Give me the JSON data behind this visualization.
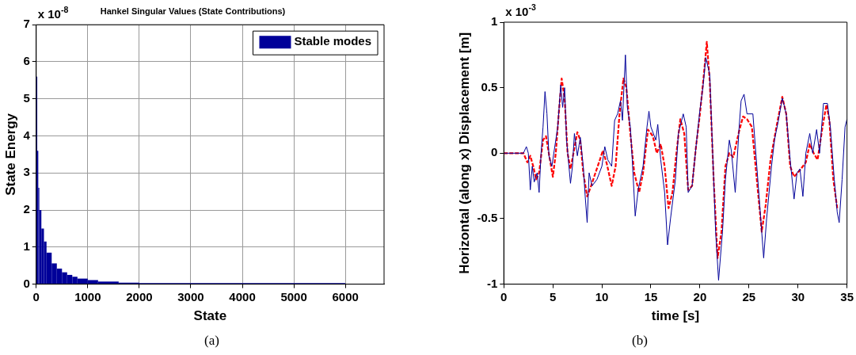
{
  "chart_data": [
    {
      "type": "histogram",
      "title": "Hankel Singular Values (State Contributions)",
      "xlabel": "State",
      "ylabel": "State Energy",
      "bins": [
        0,
        20,
        40,
        60,
        100,
        150,
        200,
        300,
        400,
        500,
        600,
        700,
        800,
        1000,
        1200,
        1600,
        2000,
        6000,
        6750
      ],
      "series": [
        {
          "name": "Stable modes",
          "color": "#000099",
          "values": [
            5.6,
            3.6,
            2.6,
            2.0,
            1.5,
            1.15,
            0.85,
            0.56,
            0.42,
            0.32,
            0.25,
            0.2,
            0.15,
            0.11,
            0.07,
            0.04,
            0.03,
            0.01
          ]
        }
      ],
      "xlim": [
        0,
        6750
      ],
      "xticks": [
        0,
        1000,
        2000,
        3000,
        4000,
        5000,
        6000
      ],
      "ylim": [
        0,
        7
      ],
      "yticks": [
        0,
        1,
        2,
        3,
        4,
        5,
        6,
        7
      ],
      "grid": true,
      "legend": "top right",
      "annotations": [
        "x 10$^{-8}$",
        "(a)"
      ]
    },
    {
      "type": "line",
      "xlabel": "time [s]",
      "ylabel": "Horizontal (along x) Displacement [m]",
      "series": [
        {
          "color": "#000099",
          "line_style": "solid",
          "x": [
            0,
            2.0,
            2.3,
            2.5,
            2.7,
            2.9,
            3.1,
            3.4,
            3.6,
            3.8,
            4.0,
            4.2,
            4.4,
            4.6,
            4.9,
            5.2,
            5.5,
            5.8,
            6.0,
            6.2,
            6.4,
            6.8,
            7.0,
            7.2,
            7.5,
            7.8,
            8.1,
            8.3,
            8.5,
            8.7,
            9.0,
            9.5,
            10.0,
            10.3,
            10.6,
            11.0,
            11.3,
            11.6,
            11.9,
            12.1,
            12.4,
            12.6,
            12.9,
            13.1,
            13.4,
            13.7,
            14.2,
            14.6,
            14.8,
            15.0,
            15.5,
            15.7,
            16.0,
            16.4,
            16.7,
            17.0,
            17.5,
            17.8,
            18.3,
            18.6,
            18.8,
            19.2,
            19.6,
            20.0,
            20.3,
            20.6,
            21.0,
            21.3,
            21.6,
            21.9,
            22.3,
            22.6,
            23.0,
            23.2,
            23.6,
            24.0,
            24.2,
            24.5,
            24.8,
            25.4,
            25.8,
            26.2,
            26.5,
            26.8,
            27.3,
            27.6,
            28.0,
            28.4,
            28.8,
            29.2,
            29.6,
            29.9,
            30.2,
            30.5,
            30.8,
            31.2,
            31.5,
            31.9,
            32.2,
            32.6,
            33.0,
            33.3,
            33.7,
            34.0,
            34.2,
            34.5,
            34.8,
            35.0
          ],
          "values": [
            0,
            0,
            0.05,
            0.0,
            -0.28,
            -0.1,
            -0.22,
            -0.15,
            -0.3,
            0.0,
            0.2,
            0.47,
            0.3,
            -0.02,
            -0.1,
            0.05,
            0.2,
            0.52,
            0.35,
            0.5,
            0.1,
            -0.23,
            -0.1,
            0.15,
            -0.02,
            0.12,
            -0.1,
            -0.33,
            -0.53,
            -0.15,
            -0.25,
            -0.2,
            -0.1,
            0.05,
            -0.05,
            -0.1,
            0.25,
            0.3,
            0.4,
            0.25,
            0.75,
            0.35,
            0.2,
            -0.05,
            -0.48,
            -0.28,
            -0.1,
            0.2,
            0.32,
            0.2,
            0.1,
            0.22,
            -0.05,
            -0.3,
            -0.7,
            -0.5,
            -0.2,
            0.15,
            0.3,
            0.2,
            -0.3,
            -0.25,
            0.05,
            0.33,
            0.5,
            0.73,
            0.6,
            0.0,
            -0.6,
            -0.97,
            -0.6,
            -0.2,
            0.1,
            0.02,
            -0.3,
            0.2,
            0.4,
            0.45,
            0.3,
            0.3,
            -0.1,
            -0.5,
            -0.8,
            -0.5,
            -0.1,
            0.1,
            0.25,
            0.42,
            0.3,
            -0.05,
            -0.35,
            -0.15,
            -0.12,
            -0.33,
            0.0,
            0.15,
            0.0,
            0.18,
            0.0,
            0.38,
            0.38,
            0.2,
            -0.2,
            -0.45,
            -0.53,
            -0.2,
            0.2,
            0.26
          ]
        },
        {
          "color": "#ff0000",
          "line_style": "dashed",
          "x": [
            0,
            2.0,
            2.4,
            2.7,
            3.0,
            3.3,
            3.6,
            4.0,
            4.3,
            4.7,
            5.0,
            5.3,
            5.6,
            5.9,
            6.2,
            6.5,
            6.8,
            7.1,
            7.5,
            7.8,
            8.1,
            8.5,
            8.9,
            9.3,
            9.8,
            10.1,
            10.5,
            11.0,
            11.4,
            11.8,
            12.2,
            12.5,
            12.9,
            13.3,
            13.8,
            14.2,
            14.7,
            15.2,
            15.6,
            16.0,
            16.4,
            16.8,
            17.2,
            17.6,
            18.0,
            18.4,
            18.8,
            19.2,
            19.6,
            20.0,
            20.4,
            20.7,
            21.0,
            21.4,
            21.8,
            22.2,
            22.6,
            23.0,
            23.4,
            24.0,
            24.4,
            24.8,
            25.3,
            25.8,
            26.3,
            26.7,
            27.2,
            27.8,
            28.4,
            28.8,
            29.2,
            29.6,
            30.2,
            30.8,
            31.2,
            31.6,
            32.0,
            32.5,
            32.9,
            33.2,
            33.6,
            34.0
          ],
          "values": [
            0,
            0,
            -0.07,
            -0.02,
            -0.1,
            -0.2,
            -0.15,
            0.1,
            0.13,
            -0.05,
            -0.18,
            0.0,
            0.3,
            0.57,
            0.42,
            0.0,
            -0.12,
            0.0,
            0.16,
            0.1,
            -0.15,
            -0.33,
            -0.25,
            -0.16,
            -0.05,
            0.02,
            -0.08,
            -0.25,
            -0.1,
            0.3,
            0.57,
            0.5,
            0.15,
            -0.15,
            -0.3,
            -0.15,
            0.18,
            0.13,
            0.0,
            0.07,
            -0.1,
            -0.42,
            -0.3,
            0.0,
            0.26,
            0.15,
            -0.28,
            -0.25,
            0.05,
            0.3,
            0.6,
            0.85,
            0.55,
            -0.2,
            -0.8,
            -0.6,
            -0.1,
            0.0,
            -0.03,
            0.17,
            0.28,
            0.26,
            0.2,
            -0.2,
            -0.6,
            -0.4,
            -0.05,
            0.2,
            0.43,
            0.3,
            -0.1,
            -0.18,
            -0.13,
            -0.07,
            0.07,
            0.0,
            -0.05,
            0.2,
            0.37,
            0.25,
            -0.2,
            -0.42
          ]
        }
      ],
      "xlim": [
        0,
        35
      ],
      "xticks": [
        0,
        5,
        10,
        15,
        20,
        25,
        30,
        35
      ],
      "ylim": [
        -1,
        1
      ],
      "yticks": [
        -1,
        -0.5,
        0,
        0.5,
        1
      ],
      "grid": false,
      "annotations": [
        "x 10$^{-3}$",
        "(b)"
      ]
    }
  ]
}
